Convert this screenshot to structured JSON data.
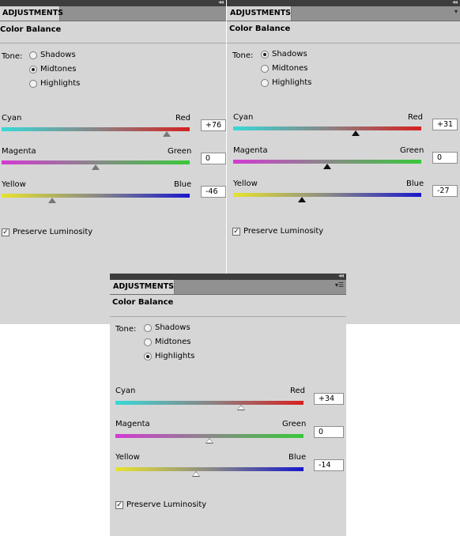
{
  "panels": [
    {
      "tab": "ADJUSTMENTS",
      "title": "Color Balance",
      "tone_label": "Tone:",
      "tones": [
        {
          "label": "Shadows",
          "selected": false
        },
        {
          "label": "Midtones",
          "selected": true
        },
        {
          "label": "Highlights",
          "selected": false
        }
      ],
      "sliders": [
        {
          "left": "Cyan",
          "right": "Red",
          "value": "+76"
        },
        {
          "left": "Magenta",
          "right": "Green",
          "value": "0"
        },
        {
          "left": "Yellow",
          "right": "Blue",
          "value": "-46"
        }
      ],
      "preserve": "Preserve Luminosity",
      "preserve_checked": true
    },
    {
      "tab": "ADJUSTMENTS",
      "title": "Color Balance",
      "tone_label": "Tone:",
      "tones": [
        {
          "label": "Shadows",
          "selected": true
        },
        {
          "label": "Midtones",
          "selected": false
        },
        {
          "label": "Highlights",
          "selected": false
        }
      ],
      "sliders": [
        {
          "left": "Cyan",
          "right": "Red",
          "value": "+31"
        },
        {
          "left": "Magenta",
          "right": "Green",
          "value": "0"
        },
        {
          "left": "Yellow",
          "right": "Blue",
          "value": "-27"
        }
      ],
      "preserve": "Preserve Luminosity",
      "preserve_checked": true
    },
    {
      "tab": "ADJUSTMENTS",
      "title": "Color Balance",
      "tone_label": "Tone:",
      "tones": [
        {
          "label": "Shadows",
          "selected": false
        },
        {
          "label": "Midtones",
          "selected": false
        },
        {
          "label": "Highlights",
          "selected": true
        }
      ],
      "sliders": [
        {
          "left": "Cyan",
          "right": "Red",
          "value": "+34"
        },
        {
          "left": "Magenta",
          "right": "Green",
          "value": "0"
        },
        {
          "left": "Yellow",
          "right": "Blue",
          "value": "-14"
        }
      ],
      "preserve": "Preserve Luminosity",
      "preserve_checked": true
    }
  ]
}
